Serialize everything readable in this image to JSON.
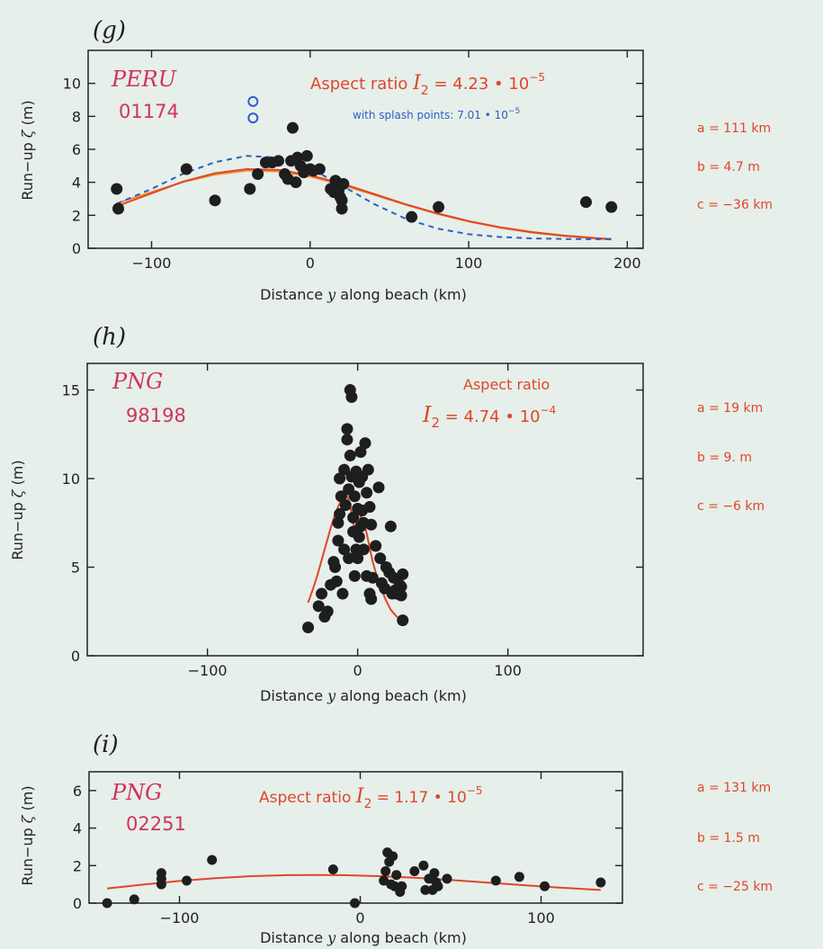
{
  "colors": {
    "bg": "#e6efe9",
    "red": "#e0452c",
    "orange": "#f0922f",
    "blue": "#2d5fc7",
    "pink": "#d0345a",
    "dot": "#1e1e1e",
    "axis": "#222222"
  },
  "xlabel_prefix": "Distance ",
  "xlabel_var": "y",
  "xlabel_suffix": " along beach  (km)",
  "ylabel_prefix": "Run−up ",
  "ylabel_var": "ζ",
  "ylabel_suffix": " (m)",
  "chart_data": [
    {
      "type": "scatter",
      "panel": "(g)",
      "region": "PERU",
      "event": "01174",
      "ratio_prefix": "Aspect ratio ",
      "ratio_var": "I",
      "ratio_sub": "2",
      "ratio_text": " = 4.23 • 10",
      "ratio_exp": "−5",
      "splash_text": "with splash points: 7.01 • 10",
      "splash_exp": "−5",
      "params": [
        "a = 111 km",
        "b = 4.7 m",
        "c = −36 km"
      ],
      "xlim": [
        -140,
        210
      ],
      "ylim": [
        0,
        12
      ],
      "xticks": [
        -100,
        0,
        100,
        200
      ],
      "xtick_labels": [
        "−100",
        "0",
        "100",
        "200"
      ],
      "yticks": [
        0,
        2,
        4,
        6,
        8,
        10
      ],
      "points": [
        [
          -122,
          3.6
        ],
        [
          -121,
          2.4
        ],
        [
          -78,
          4.8
        ],
        [
          -60,
          2.9
        ],
        [
          -38,
          3.6
        ],
        [
          -33,
          4.5
        ],
        [
          -28,
          5.2
        ],
        [
          -24,
          5.2
        ],
        [
          -20,
          5.3
        ],
        [
          -16,
          4.5
        ],
        [
          -14,
          4.2
        ],
        [
          -12,
          5.3
        ],
        [
          -11,
          7.3
        ],
        [
          -9,
          4.0
        ],
        [
          -8,
          5.5
        ],
        [
          -6,
          5.0
        ],
        [
          -4,
          4.6
        ],
        [
          -2,
          5.6
        ],
        [
          0,
          4.8
        ],
        [
          2,
          4.7
        ],
        [
          6,
          4.8
        ],
        [
          13,
          3.6
        ],
        [
          15,
          3.4
        ],
        [
          16,
          4.1
        ],
        [
          18,
          3.5
        ],
        [
          19,
          3.1
        ],
        [
          20,
          2.4
        ],
        [
          20,
          2.9
        ],
        [
          21,
          3.9
        ],
        [
          64,
          1.9
        ],
        [
          81,
          2.5
        ],
        [
          174,
          2.8
        ],
        [
          190,
          2.5
        ]
      ],
      "splash_points": [
        [
          -36,
          8.9
        ],
        [
          -36,
          7.9
        ]
      ],
      "series": [
        {
          "name": "",
          "style": "solid",
          "values": [
            [
              -122,
              2.72
            ],
            [
              -100,
              3.41
            ],
            [
              -80,
              4.02
            ],
            [
              -60,
              4.47
            ],
            [
              -40,
              4.7
            ],
            [
              -36,
              4.7
            ],
            [
              -20,
              4.66
            ],
            [
              0,
              4.35
            ],
            [
              20,
              3.85
            ],
            [
              40,
              3.25
            ],
            [
              60,
              2.64
            ],
            [
              80,
              2.09
            ],
            [
              100,
              1.62
            ],
            [
              120,
              1.24
            ],
            [
              140,
              0.95
            ],
            [
              160,
              0.74
            ],
            [
              180,
              0.59
            ],
            [
              190,
              0.53
            ]
          ]
        },
        {
          "name": "",
          "style": "solid",
          "values": [
            [
              -122,
              2.55
            ],
            [
              -100,
              3.33
            ],
            [
              -80,
              4.05
            ],
            [
              -60,
              4.55
            ],
            [
              -40,
              4.8
            ],
            [
              -20,
              4.75
            ],
            [
              0,
              4.43
            ],
            [
              20,
              3.92
            ],
            [
              40,
              3.3
            ],
            [
              60,
              2.68
            ],
            [
              80,
              2.12
            ],
            [
              100,
              1.65
            ],
            [
              120,
              1.27
            ],
            [
              140,
              0.98
            ],
            [
              160,
              0.77
            ],
            [
              180,
              0.62
            ],
            [
              190,
              0.56
            ]
          ]
        },
        {
          "name": "",
          "style": "dashed",
          "values": [
            [
              -122,
              2.7
            ],
            [
              -100,
              3.6
            ],
            [
              -80,
              4.52
            ],
            [
              -60,
              5.22
            ],
            [
              -40,
              5.6
            ],
            [
              -20,
              5.5
            ],
            [
              0,
              4.85
            ],
            [
              20,
              3.8
            ],
            [
              40,
              2.7
            ],
            [
              60,
              1.8
            ],
            [
              80,
              1.2
            ],
            [
              100,
              0.85
            ],
            [
              120,
              0.68
            ],
            [
              140,
              0.6
            ],
            [
              160,
              0.56
            ],
            [
              180,
              0.55
            ],
            [
              190,
              0.55
            ]
          ]
        }
      ]
    },
    {
      "type": "scatter",
      "panel": "(h)",
      "region": "PNG",
      "event": "98198",
      "ratio_line1": "Aspect ratio",
      "ratio_var": "I",
      "ratio_sub": "2",
      "ratio_text": " = 4.74 • 10",
      "ratio_exp": "−4",
      "params": [
        "a = 19 km",
        "b = 9. m",
        "c = −6 km"
      ],
      "xlim": [
        -180,
        190
      ],
      "ylim": [
        0,
        16.5
      ],
      "xticks": [
        -100,
        0,
        100
      ],
      "xtick_labels": [
        "−100",
        "0",
        "100"
      ],
      "yticks": [
        0,
        5,
        10,
        15
      ],
      "points": [
        [
          -33,
          1.6
        ],
        [
          -26,
          2.8
        ],
        [
          -24,
          3.5
        ],
        [
          -22,
          2.2
        ],
        [
          -20,
          2.5
        ],
        [
          -18,
          4.0
        ],
        [
          -16,
          5.3
        ],
        [
          -15,
          5.0
        ],
        [
          -14,
          4.2
        ],
        [
          -13,
          6.5
        ],
        [
          -13,
          7.5
        ],
        [
          -12,
          8.0
        ],
        [
          -12,
          10.0
        ],
        [
          -11,
          9.0
        ],
        [
          -10,
          3.5
        ],
        [
          -9,
          6.0
        ],
        [
          -9,
          10.5
        ],
        [
          -8,
          8.5
        ],
        [
          -7,
          12.2
        ],
        [
          -7,
          12.8
        ],
        [
          -6,
          5.5
        ],
        [
          -6,
          9.4
        ],
        [
          -5,
          11.3
        ],
        [
          -5,
          15.0
        ],
        [
          -4,
          14.6
        ],
        [
          -4,
          10.1
        ],
        [
          -3,
          7.0
        ],
        [
          -3,
          7.8
        ],
        [
          -2,
          9.0
        ],
        [
          -2,
          4.5
        ],
        [
          -1,
          6.0
        ],
        [
          -1,
          10.4
        ],
        [
          0,
          5.5
        ],
        [
          0,
          8.3
        ],
        [
          1,
          9.8
        ],
        [
          1,
          6.7
        ],
        [
          2,
          7.3
        ],
        [
          2,
          11.5
        ],
        [
          3,
          8.2
        ],
        [
          3,
          10.1
        ],
        [
          4,
          6.0
        ],
        [
          4,
          7.5
        ],
        [
          5,
          12.0
        ],
        [
          6,
          9.2
        ],
        [
          6,
          4.5
        ],
        [
          7,
          10.5
        ],
        [
          8,
          3.5
        ],
        [
          8,
          8.4
        ],
        [
          9,
          7.4
        ],
        [
          9,
          3.2
        ],
        [
          10,
          4.4
        ],
        [
          12,
          6.2
        ],
        [
          14,
          9.5
        ],
        [
          15,
          5.5
        ],
        [
          16,
          4.1
        ],
        [
          18,
          3.8
        ],
        [
          19,
          5.0
        ],
        [
          21,
          4.7
        ],
        [
          22,
          7.3
        ],
        [
          23,
          3.5
        ],
        [
          24,
          4.4
        ],
        [
          25,
          3.7
        ],
        [
          26,
          3.5
        ],
        [
          27,
          3.6
        ],
        [
          28,
          4.0
        ],
        [
          29,
          3.4
        ],
        [
          29,
          3.9
        ],
        [
          30,
          4.6
        ],
        [
          30,
          2.0
        ]
      ],
      "series": [
        {
          "name": "",
          "style": "solid",
          "values": [
            [
              -33,
              3.0
            ],
            [
              -30,
              3.7
            ],
            [
              -27,
              4.5
            ],
            [
              -24,
              5.4
            ],
            [
              -21,
              6.3
            ],
            [
              -18,
              7.2
            ],
            [
              -15,
              8.0
            ],
            [
              -12,
              8.6
            ],
            [
              -9,
              9.0
            ],
            [
              -7,
              9.05
            ],
            [
              -5,
              8.5
            ],
            [
              -3,
              7.5
            ],
            [
              -1,
              6.8
            ],
            [
              0,
              7.1
            ],
            [
              2,
              7.9
            ],
            [
              4,
              7.6
            ],
            [
              6,
              6.9
            ],
            [
              8,
              6.1
            ],
            [
              10,
              5.3
            ],
            [
              13,
              4.4
            ],
            [
              16,
              3.7
            ],
            [
              19,
              3.1
            ],
            [
              22,
              2.6
            ],
            [
              25,
              2.3
            ],
            [
              28,
              2.05
            ],
            [
              30,
              1.9
            ]
          ]
        }
      ]
    },
    {
      "type": "scatter",
      "panel": "(i)",
      "region": "PNG",
      "event": "02251",
      "ratio_prefix": "Aspect ratio ",
      "ratio_var": "I",
      "ratio_sub": "2",
      "ratio_text": " = 1.17 • 10",
      "ratio_exp": "−5",
      "params": [
        "a = 131 km",
        "b = 1.5 m",
        "c = −25 km"
      ],
      "xlim": [
        -150,
        145
      ],
      "ylim": [
        0,
        7
      ],
      "xticks": [
        -100,
        0,
        100
      ],
      "xtick_labels": [
        "−100",
        "0",
        "100"
      ],
      "yticks": [
        0,
        2,
        4,
        6
      ],
      "points": [
        [
          -140,
          0.0
        ],
        [
          -125,
          0.2
        ],
        [
          -110,
          1.0
        ],
        [
          -110,
          1.3
        ],
        [
          -110,
          1.6
        ],
        [
          -96,
          1.2
        ],
        [
          -82,
          2.3
        ],
        [
          -15,
          1.8
        ],
        [
          -3,
          0.0
        ],
        [
          13,
          1.2
        ],
        [
          14,
          1.7
        ],
        [
          15,
          2.7
        ],
        [
          16,
          2.2
        ],
        [
          17,
          1.0
        ],
        [
          18,
          2.5
        ],
        [
          19,
          0.9
        ],
        [
          20,
          1.5
        ],
        [
          22,
          0.6
        ],
        [
          23,
          0.9
        ],
        [
          30,
          1.7
        ],
        [
          35,
          2.0
        ],
        [
          36,
          0.7
        ],
        [
          38,
          1.3
        ],
        [
          40,
          0.7
        ],
        [
          41,
          1.6
        ],
        [
          42,
          1.1
        ],
        [
          43,
          0.9
        ],
        [
          48,
          1.3
        ],
        [
          75,
          1.2
        ],
        [
          88,
          1.4
        ],
        [
          102,
          0.9
        ],
        [
          133,
          1.1
        ]
      ],
      "series": [
        {
          "name": "",
          "style": "solid",
          "values": [
            [
              -140,
              0.78
            ],
            [
              -120,
              0.99
            ],
            [
              -100,
              1.18
            ],
            [
              -80,
              1.33
            ],
            [
              -60,
              1.44
            ],
            [
              -40,
              1.49
            ],
            [
              -25,
              1.5
            ],
            [
              -10,
              1.49
            ],
            [
              10,
              1.44
            ],
            [
              30,
              1.35
            ],
            [
              50,
              1.23
            ],
            [
              70,
              1.1
            ],
            [
              90,
              0.96
            ],
            [
              110,
              0.83
            ],
            [
              133,
              0.7
            ]
          ]
        }
      ]
    }
  ]
}
